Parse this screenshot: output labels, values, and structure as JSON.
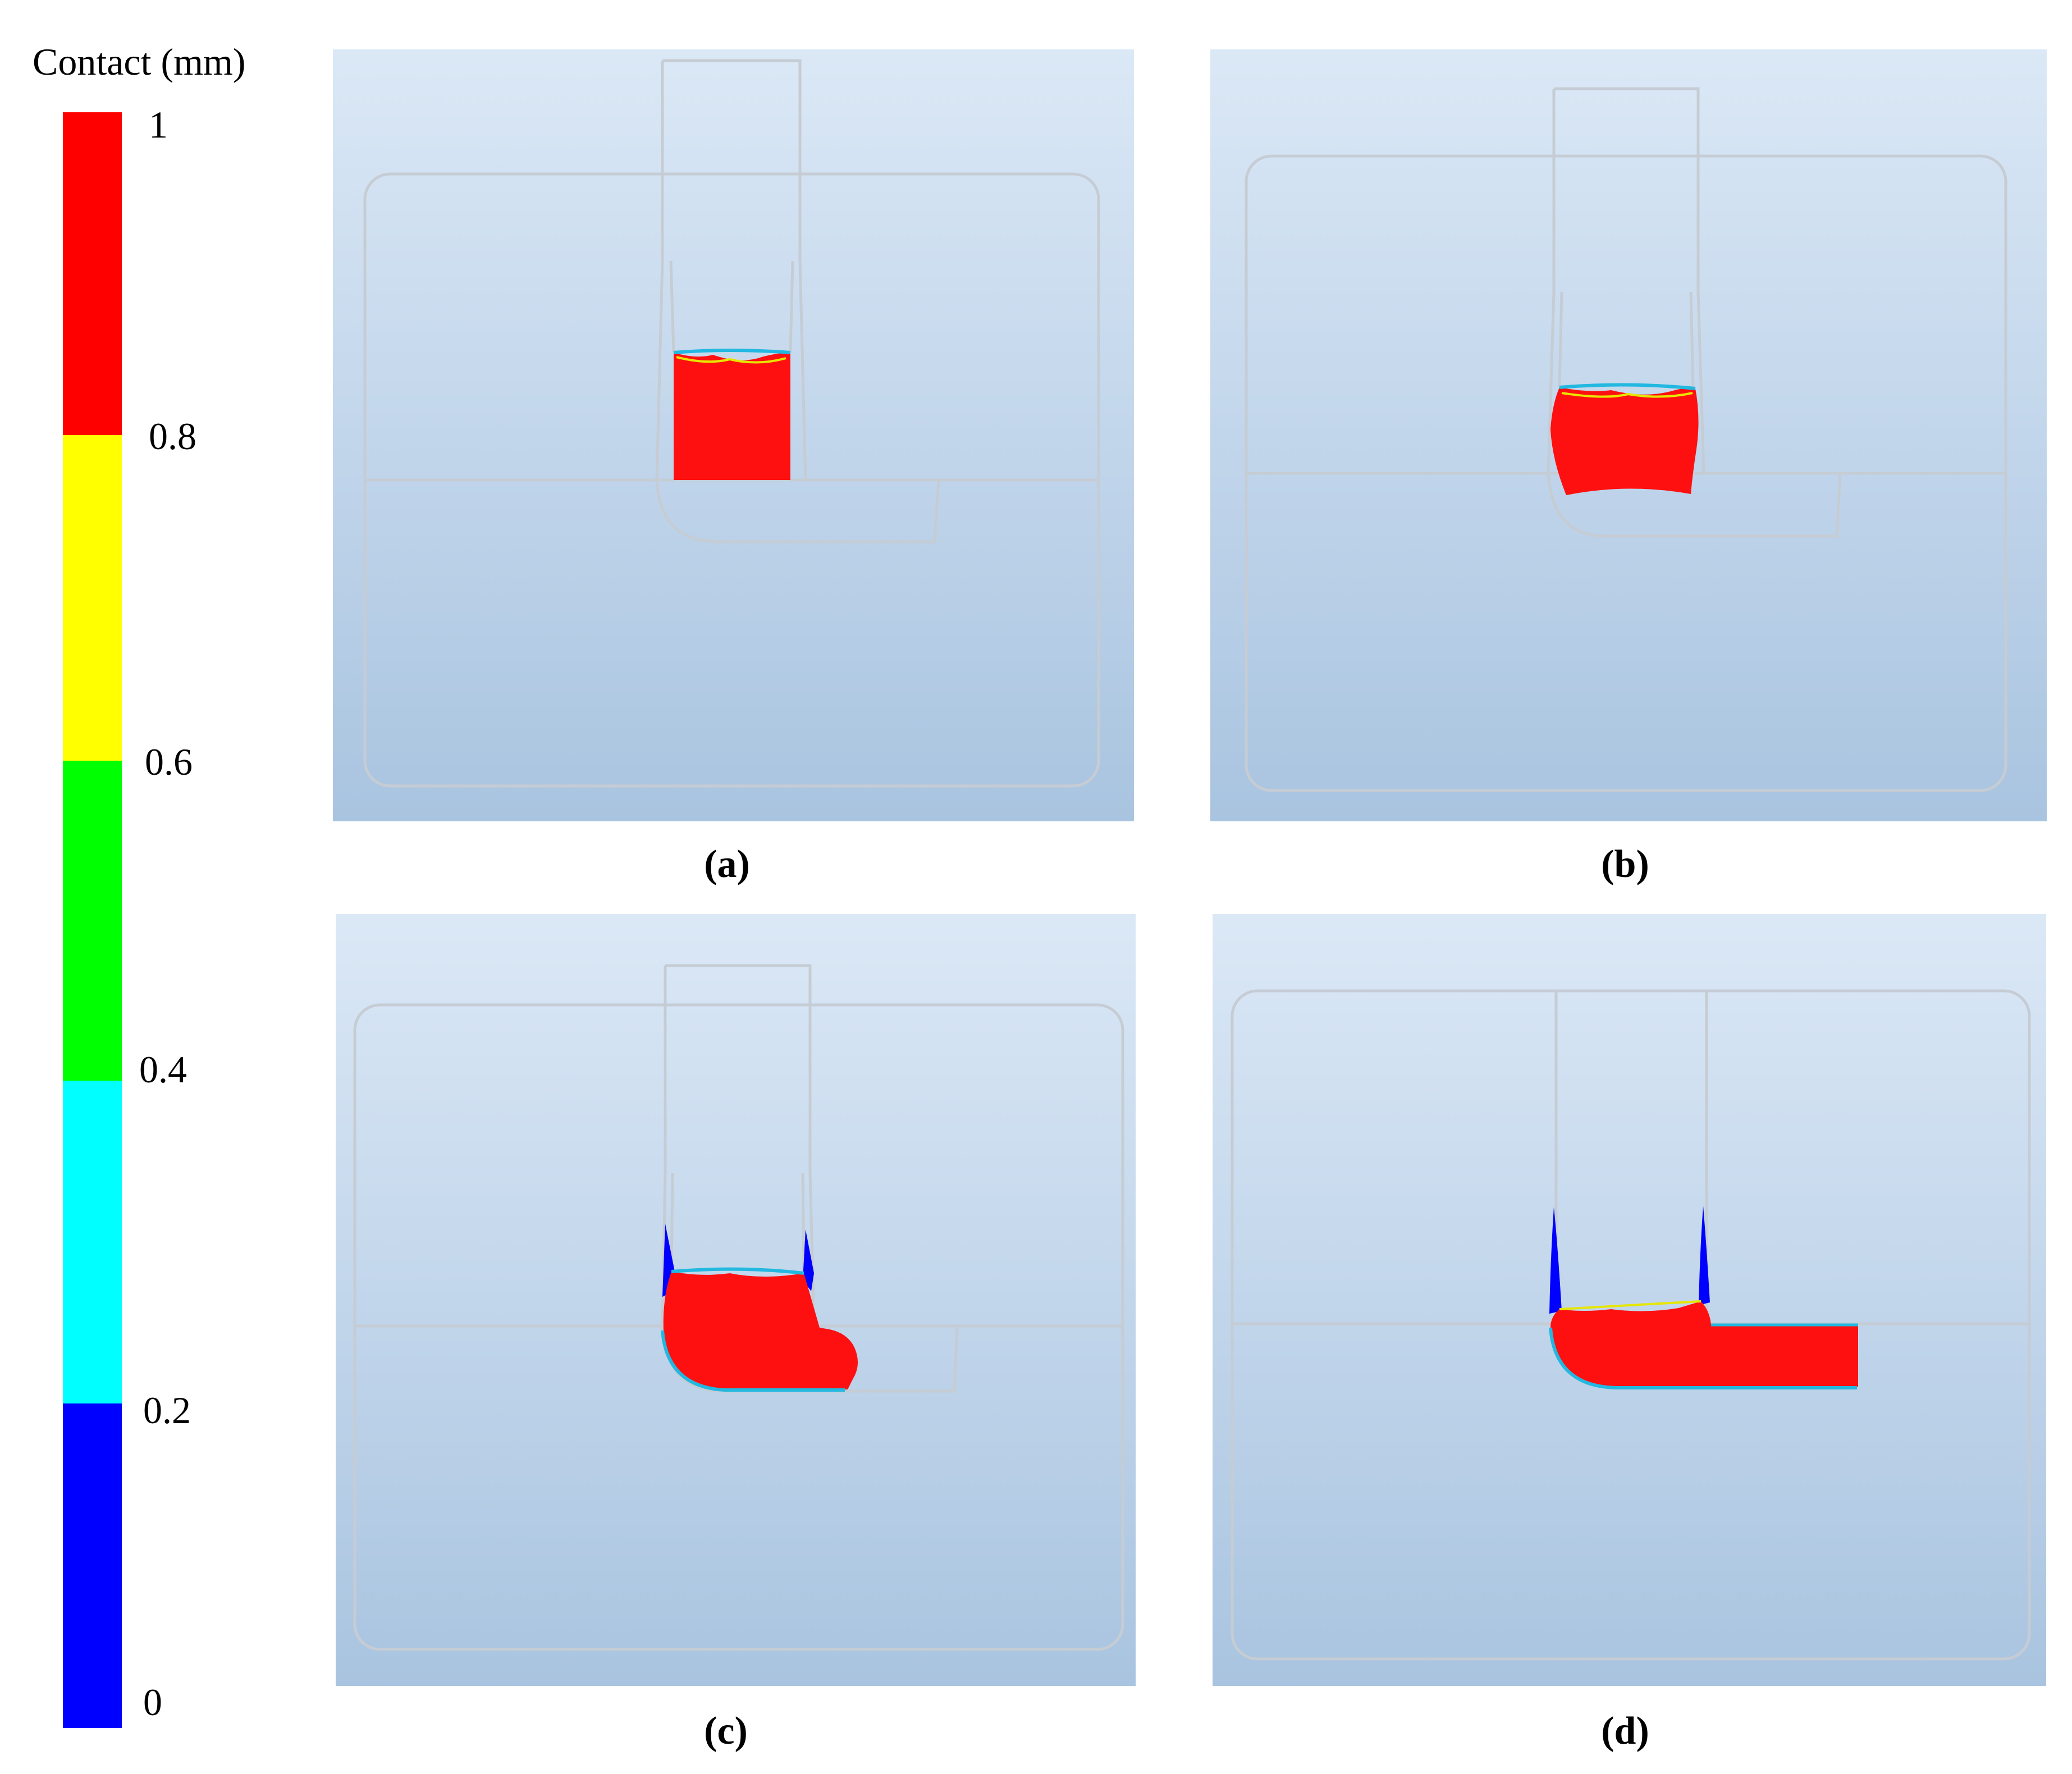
{
  "legend": {
    "title": "Contact (mm)",
    "ticks": [
      "1",
      "0.8",
      "0.6",
      "0.4",
      "0.2",
      "0"
    ],
    "bands": [
      {
        "from": 0.8,
        "to": 1.0,
        "color": "#ff0000"
      },
      {
        "from": 0.6,
        "to": 0.8,
        "color": "#ffff00"
      },
      {
        "from": 0.4,
        "to": 0.6,
        "color": "#00ff00"
      },
      {
        "from": 0.2,
        "to": 0.4,
        "color": "#00ffff"
      },
      {
        "from": 0.0,
        "to": 0.2,
        "color": "#0000ff"
      }
    ]
  },
  "panels": [
    {
      "caption": "(a)"
    },
    {
      "caption": "(b)"
    },
    {
      "caption": "(c)"
    },
    {
      "caption": "(d)"
    }
  ],
  "colors": {
    "panel_top": "#dbe8f6",
    "panel_bottom": "#a9c4e0",
    "outline": "#c6ccd4",
    "material": "#ff1010"
  }
}
